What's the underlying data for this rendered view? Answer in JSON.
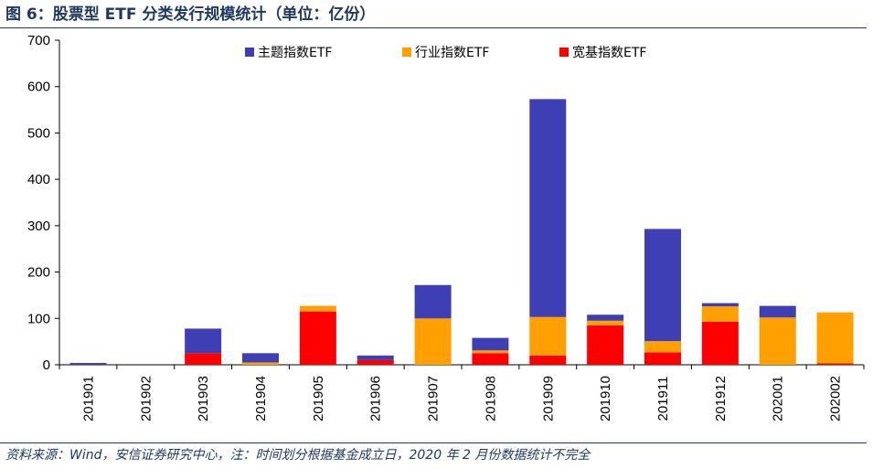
{
  "header": {
    "title": "图 6：股票型 ETF 分类发行规模统计（单位：亿份）"
  },
  "footer": {
    "source": "资料来源：Wind，安信证券研究中心，注：时间划分根据基金成立日，2020 年 2 月份数据统计不完全"
  },
  "chart_data": {
    "type": "bar",
    "stacked": true,
    "categories": [
      "201901",
      "201902",
      "201903",
      "201904",
      "201905",
      "201906",
      "201907",
      "201908",
      "201909",
      "201910",
      "201911",
      "201912",
      "202001",
      "202002"
    ],
    "series": [
      {
        "name": "宽基指数ETF",
        "color": "#ff0000",
        "values": [
          0,
          0,
          25,
          0,
          115,
          10,
          0,
          25,
          20,
          85,
          27,
          93,
          0,
          3
        ]
      },
      {
        "name": "行业指数ETF",
        "color": "#ffa000",
        "values": [
          0,
          0,
          0,
          5,
          12,
          0,
          100,
          6,
          83,
          10,
          24,
          33,
          102,
          110
        ]
      },
      {
        "name": "主题指数ETF",
        "color": "#3f3fb5",
        "values": [
          4,
          0,
          53,
          20,
          0,
          10,
          72,
          27,
          470,
          13,
          242,
          7,
          25,
          0
        ]
      }
    ],
    "legend_order": [
      "主题指数ETF",
      "行业指数ETF",
      "宽基指数ETF"
    ],
    "legend_position": "top",
    "ylim": [
      0,
      700
    ],
    "yticks": [
      0,
      100,
      200,
      300,
      400,
      500,
      600,
      700
    ],
    "grid": false
  }
}
